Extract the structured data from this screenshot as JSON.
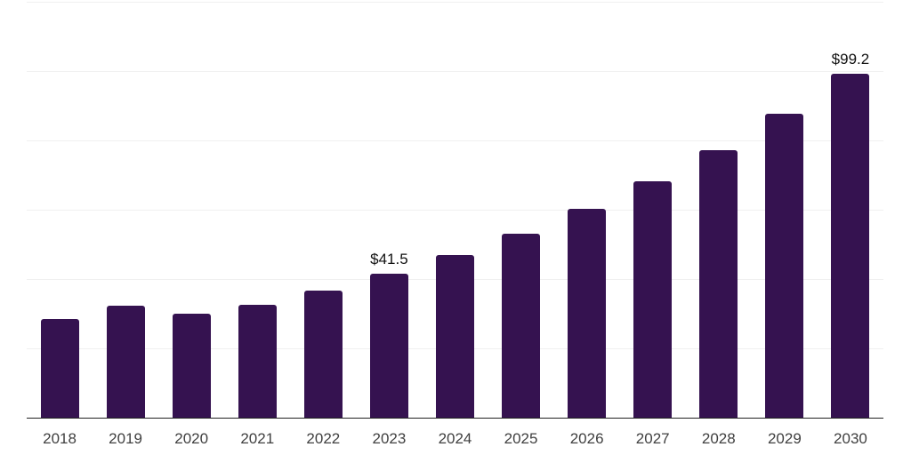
{
  "chart_data": {
    "type": "bar",
    "title": "",
    "xlabel": "",
    "ylabel": "",
    "categories": [
      "2018",
      "2019",
      "2020",
      "2021",
      "2022",
      "2023",
      "2024",
      "2025",
      "2026",
      "2027",
      "2028",
      "2029",
      "2030"
    ],
    "values": [
      28.4,
      32.4,
      29.9,
      32.6,
      36.7,
      41.5,
      47.0,
      53.2,
      60.3,
      68.3,
      77.3,
      87.6,
      99.2
    ],
    "data_labels": [
      {
        "category": "2023",
        "text": "$41.5"
      },
      {
        "category": "2030",
        "text": "$99.2"
      }
    ],
    "ylim": [
      0,
      120
    ],
    "gridline_step": 20,
    "grid": "horizontal-only",
    "y_tick_labels_visible": false,
    "legend": "none",
    "colors": {
      "bar": "#351250",
      "axis_line": "#222222",
      "gridline": "#f0f0f0",
      "data_label": "#111111",
      "tick_label": "#404040",
      "background": "#ffffff"
    }
  }
}
